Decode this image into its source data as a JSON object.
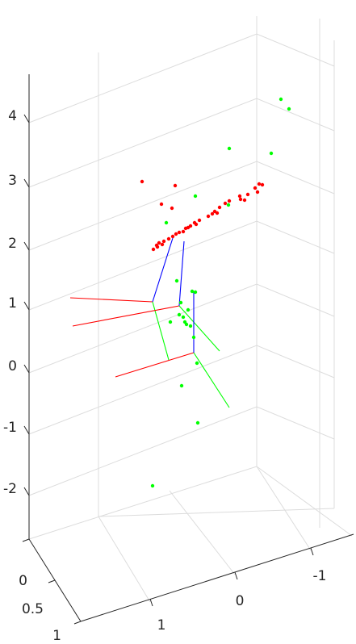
{
  "chart_data": {
    "type": "scatter",
    "dimensions": 3,
    "grid": true,
    "z_ticks": [
      "4",
      "3",
      "2",
      "1",
      "0",
      "-1",
      "-2"
    ],
    "y_ticks": [
      "0",
      "0.5",
      "1"
    ],
    "x_ticks": [
      "1",
      "0",
      "-1"
    ],
    "colors": {
      "red_points": "#ff0000",
      "green_points": "#00ff00",
      "camera_red": "#ff0000",
      "camera_green": "#00ff00",
      "camera_blue": "#0000ff",
      "grid": "#dcdcdc",
      "axis": "#262626"
    },
    "series": [
      {
        "color": "red",
        "points": [
          [
            176,
            225
          ],
          [
            217,
            230
          ],
          [
            200,
            253
          ],
          [
            213,
            258
          ],
          [
            321,
            228
          ],
          [
            316,
            233
          ],
          [
            319,
            238
          ],
          [
            297,
            243
          ],
          [
            303,
            248
          ],
          [
            279,
            252
          ],
          [
            272,
            257
          ],
          [
            266,
            262
          ],
          [
            258,
            268
          ],
          [
            247,
            273
          ],
          [
            243,
            278
          ],
          [
            236,
            280
          ],
          [
            230,
            283
          ],
          [
            222,
            288
          ],
          [
            214,
            293
          ],
          [
            209,
            296
          ],
          [
            203,
            299
          ],
          [
            197,
            301
          ],
          [
            194,
            304
          ],
          [
            190,
            309
          ],
          [
            307,
            241
          ],
          [
            284,
            249
          ],
          [
            263,
            265
          ],
          [
            241,
            276
          ],
          [
            233,
            282
          ],
          [
            218,
            290
          ],
          [
            201,
            303
          ],
          [
            195,
            306
          ],
          [
            325,
            229
          ],
          [
            298,
            247
          ],
          [
            269,
            264
          ],
          [
            227,
            287
          ]
        ]
      },
      {
        "color": "green",
        "points": [
          [
            348,
            123
          ],
          [
            358,
            135
          ],
          [
            284,
            184
          ],
          [
            336,
            190
          ],
          [
            242,
            243
          ],
          [
            283,
            254
          ],
          [
            206,
            276
          ],
          [
            219,
            348
          ],
          [
            238,
            361
          ],
          [
            242,
            362
          ],
          [
            224,
            375
          ],
          [
            233,
            384
          ],
          [
            222,
            390
          ],
          [
            227,
            393
          ],
          [
            229,
            399
          ],
          [
            211,
            399
          ],
          [
            231,
            402
          ],
          [
            236,
            404
          ],
          [
            240,
            418
          ],
          [
            244,
            450
          ],
          [
            225,
            478
          ],
          [
            245,
            524
          ],
          [
            189,
            602
          ]
        ]
      }
    ],
    "cameras": [
      {
        "name": "",
        "segments": [
          {
            "color": "red",
            "from": [
              189,
              374
            ],
            "to": [
              87,
              369
            ]
          },
          {
            "color": "blue",
            "from": [
              189,
              374
            ],
            "to": [
              214,
              295
            ]
          },
          {
            "color": "green",
            "from": [
              189,
              374
            ],
            "to": [
              209,
              446
            ]
          }
        ]
      },
      {
        "name": "",
        "segments": [
          {
            "color": "red",
            "from": [
              222,
              379
            ],
            "to": [
              90,
              404
            ]
          },
          {
            "color": "blue",
            "from": [
              222,
              379
            ],
            "to": [
              228,
              299
            ]
          },
          {
            "color": "green",
            "from": [
              222,
              379
            ],
            "to": [
              272,
              435
            ]
          }
        ]
      },
      {
        "name": "",
        "segments": [
          {
            "color": "red",
            "from": [
              240,
              437
            ],
            "to": [
              143,
              467
            ]
          },
          {
            "color": "blue",
            "from": [
              240,
              437
            ],
            "to": [
              240,
              361
            ]
          },
          {
            "color": "green",
            "from": [
              240,
              437
            ],
            "to": [
              284,
              505
            ]
          }
        ]
      }
    ]
  }
}
